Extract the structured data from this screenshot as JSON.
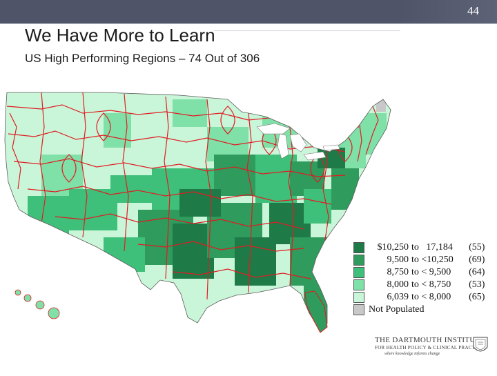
{
  "header": {
    "page_number": "44"
  },
  "slide": {
    "title": "We Have More to Learn",
    "subtitle": "US High Performing Regions – 74 Out of 306"
  },
  "map": {
    "region_border_color": "#e11b22",
    "legend": [
      {
        "from": "$10,250",
        "to": "to   17,184",
        "count": "(55)",
        "color": "#1e7b48"
      },
      {
        "from": "9,500",
        "to": "to <10,250",
        "count": "(69)",
        "color": "#2f9b5c"
      },
      {
        "from": "8,750",
        "to": "to < 9,500",
        "count": "(64)",
        "color": "#3fc07a"
      },
      {
        "from": "8,000",
        "to": "to < 8,750",
        "count": "(53)",
        "color": "#7fe1a8"
      },
      {
        "from": "6,039",
        "to": "to < 8,000",
        "count": "(65)",
        "color": "#c9f6d8"
      }
    ],
    "not_populated": {
      "label": "Not Populated",
      "color": "#c8c8c8"
    }
  },
  "logo": {
    "line1": "THE DARTMOUTH INSTITUTE",
    "line2": "FOR HEALTH POLICY & CLINICAL PRACTICE",
    "line3": "where knowledge informs change"
  }
}
